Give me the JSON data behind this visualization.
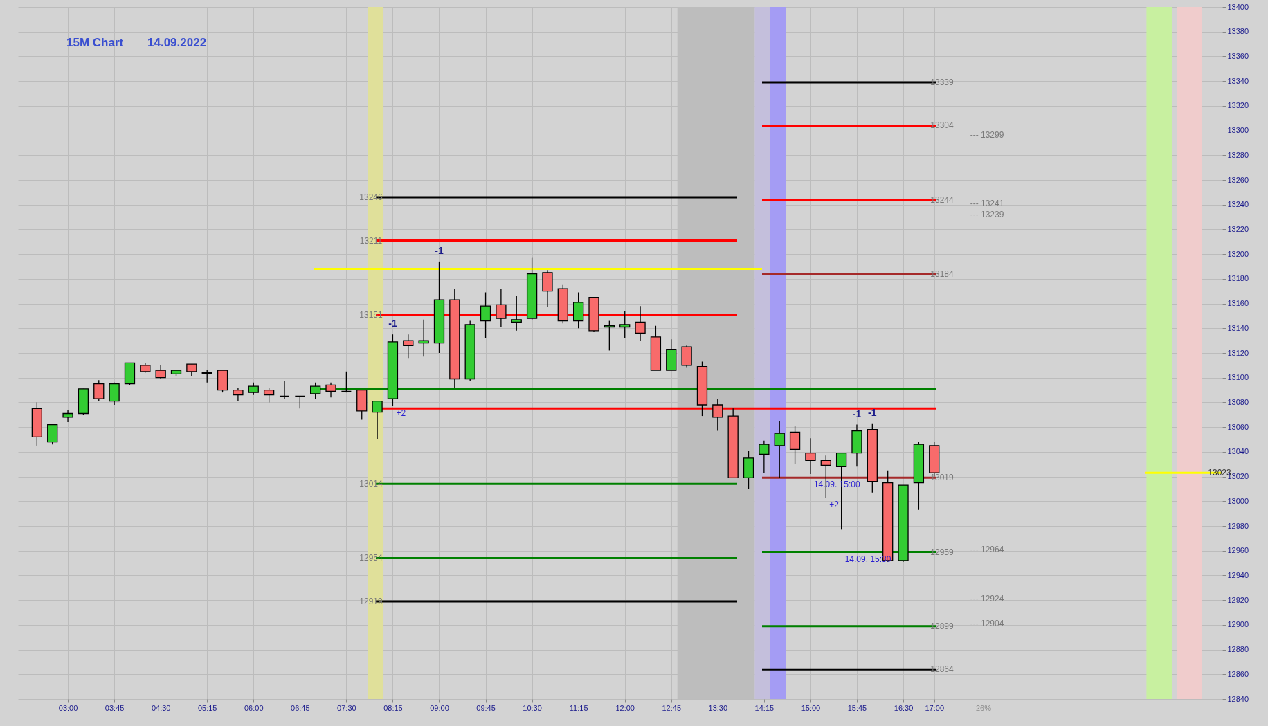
{
  "chart_data": {
    "type": "candlestick",
    "title": "15M Chart",
    "subtitle": "14.09.2022",
    "x": [
      2.5,
      2.75,
      3,
      3.25,
      3.5,
      3.75,
      4,
      4.25,
      4.5,
      4.75,
      5,
      5.25,
      5.5,
      5.75,
      6,
      6.25,
      6.5,
      6.75,
      7,
      7.25,
      7.5,
      7.75,
      8,
      8.25,
      8.5,
      8.75,
      9,
      9.25,
      9.5,
      9.75,
      10,
      10.25,
      10.5,
      10.75,
      11,
      11.25,
      11.5,
      11.75,
      12,
      12.25,
      12.5,
      12.75,
      13,
      13.25,
      13.5,
      13.75,
      14,
      14.25,
      14.5,
      14.75,
      15,
      15.25,
      15.5,
      15.75,
      16,
      16.25,
      16.5,
      16.75,
      17
    ],
    "ohlc": [
      [
        13075,
        13080,
        13045,
        13052
      ],
      [
        13048,
        13062,
        13046,
        13062
      ],
      [
        13068,
        13074,
        13064,
        13071
      ],
      [
        13071,
        13091,
        13070,
        13091
      ],
      [
        13095,
        13098,
        13081,
        13083
      ],
      [
        13081,
        13096,
        13078,
        13095
      ],
      [
        13095,
        13112,
        13094,
        13112
      ],
      [
        13110,
        13112,
        13104,
        13105
      ],
      [
        13106,
        13110,
        13099,
        13100
      ],
      [
        13103,
        13106,
        13101,
        13106
      ],
      [
        13111,
        13111,
        13101,
        13105
      ],
      [
        13104,
        13106,
        13096,
        13103
      ],
      [
        13106,
        13106,
        13088,
        13090
      ],
      [
        13090,
        13092,
        13081,
        13086
      ],
      [
        13088,
        13096,
        13086,
        13093
      ],
      [
        13090,
        13092,
        13080,
        13086
      ],
      [
        13085,
        13097,
        13083,
        13085
      ],
      [
        13085,
        13085,
        13075,
        13085
      ],
      [
        13087,
        13096,
        13083,
        13093
      ],
      [
        13094,
        13096,
        13084,
        13089
      ],
      [
        13089,
        13105,
        13088,
        13089
      ],
      [
        13090,
        13090,
        13066,
        13073
      ],
      [
        13072,
        13081,
        13050,
        13081
      ],
      [
        13083,
        13135,
        13077,
        13129
      ],
      [
        13130,
        13135,
        13116,
        13126
      ],
      [
        13128,
        13147,
        13117,
        13130
      ],
      [
        13128,
        13194,
        13120,
        13163
      ],
      [
        13163,
        13172,
        13092,
        13099
      ],
      [
        13099,
        13146,
        13097,
        13143
      ],
      [
        13146,
        13169,
        13132,
        13158
      ],
      [
        13159,
        13172,
        13141,
        13148
      ],
      [
        13145,
        13166,
        13138,
        13147
      ],
      [
        13148,
        13197,
        13147,
        13184
      ],
      [
        13185,
        13187,
        13157,
        13170
      ],
      [
        13172,
        13175,
        13144,
        13146
      ],
      [
        13146,
        13169,
        13140,
        13161
      ],
      [
        13165,
        13165,
        13137,
        13138
      ],
      [
        13141,
        13146,
        13122,
        13142
      ],
      [
        13141,
        13154,
        13132,
        13143
      ],
      [
        13145,
        13158,
        13130,
        13136
      ],
      [
        13133,
        13142,
        13106,
        13106
      ],
      [
        13106,
        13131,
        13106,
        13123
      ],
      [
        13125,
        13126,
        13108,
        13110
      ],
      [
        13109,
        13113,
        13069,
        13078
      ],
      [
        13078,
        13083,
        13057,
        13068
      ],
      [
        13069,
        13075,
        13019,
        13019
      ],
      [
        13019,
        13041,
        13010,
        13035
      ],
      [
        13038,
        13049,
        13023,
        13046
      ],
      [
        13045,
        13065,
        13019,
        13055
      ],
      [
        13056,
        13061,
        13030,
        13042
      ],
      [
        13039,
        13051,
        13022,
        13033
      ],
      [
        13033,
        13037,
        13003,
        13029
      ],
      [
        13028,
        13039,
        12977,
        13039
      ],
      [
        13039,
        13062,
        13028,
        13057
      ],
      [
        13058,
        13063,
        13007,
        13016
      ],
      [
        13015,
        13025,
        12951,
        12952
      ],
      [
        12952,
        13013,
        12951,
        13013
      ],
      [
        13015,
        13048,
        12993,
        13046
      ],
      [
        13045,
        13048,
        13020,
        13023
      ]
    ],
    "colors": [
      "#f86b6b",
      "#33cc33",
      "#33cc33",
      "#33cc33",
      "#f86b6b",
      "#33cc33",
      "#33cc33",
      "#f86b6b",
      "#f86b6b",
      "#33cc33",
      "#f86b6b",
      "#000000",
      "#f86b6b",
      "#f86b6b",
      "#33cc33",
      "#f86b6b",
      "#000000",
      "#000000",
      "#33cc33",
      "#f86b6b",
      "#000000",
      "#f86b6b",
      "#33cc33",
      "#33cc33",
      "#f86b6b",
      "#33cc33",
      "#33cc33",
      "#f86b6b",
      "#33cc33",
      "#33cc33",
      "#f86b6b",
      "#33cc33",
      "#33cc33",
      "#f86b6b",
      "#f86b6b",
      "#33cc33",
      "#f86b6b",
      "#33cc33",
      "#33cc33",
      "#f86b6b",
      "#f86b6b",
      "#33cc33",
      "#f86b6b",
      "#f86b6b",
      "#f86b6b",
      "#f86b6b",
      "#33cc33",
      "#33cc33",
      "#33cc33",
      "#f86b6b",
      "#f86b6b",
      "#f86b6b",
      "#33cc33",
      "#33cc33",
      "#f86b6b",
      "#f86b6b",
      "#33cc33",
      "#33cc33",
      "#f86b6b"
    ],
    "xlim": [
      2.25,
      21.6
    ],
    "ylim": [
      12840,
      13400
    ],
    "xticks": [
      {
        "value": 3,
        "label": "03:00"
      },
      {
        "value": 3.75,
        "label": "03:45"
      },
      {
        "value": 4.5,
        "label": "04:30"
      },
      {
        "value": 5.25,
        "label": "05:15"
      },
      {
        "value": 6,
        "label": "06:00"
      },
      {
        "value": 6.75,
        "label": "06:45"
      },
      {
        "value": 7.5,
        "label": "07:30"
      },
      {
        "value": 8.25,
        "label": "08:15"
      },
      {
        "value": 9,
        "label": "09:00"
      },
      {
        "value": 9.75,
        "label": "09:45"
      },
      {
        "value": 10.5,
        "label": "10:30"
      },
      {
        "value": 11.25,
        "label": "11:15"
      },
      {
        "value": 12,
        "label": "12:00"
      },
      {
        "value": 12.75,
        "label": "12:45"
      },
      {
        "value": 13.5,
        "label": "13:30"
      },
      {
        "value": 14.25,
        "label": "14:15"
      },
      {
        "value": 15,
        "label": "15:00"
      },
      {
        "value": 15.75,
        "label": "15:45"
      },
      {
        "value": 16.5,
        "label": "16:30"
      },
      {
        "value": 17,
        "label": "17:00"
      }
    ],
    "yticks": [
      12840,
      12860,
      12880,
      12900,
      12920,
      12940,
      12960,
      12980,
      13000,
      13020,
      13040,
      13060,
      13080,
      13100,
      13120,
      13140,
      13160,
      13180,
      13200,
      13220,
      13240,
      13260,
      13280,
      13300,
      13320,
      13340,
      13360,
      13380,
      13400
    ],
    "grid": true,
    "bands": [
      {
        "axis": "x",
        "from": 7.85,
        "to": 8.1,
        "color": "#e0e09a"
      },
      {
        "axis": "x",
        "from": 12.85,
        "to": 14.1,
        "color": "#bdbdbd"
      },
      {
        "axis": "x",
        "from": 14.1,
        "to": 14.35,
        "color": "#c4bfdc"
      },
      {
        "axis": "x",
        "from": 14.35,
        "to": 14.6,
        "color": "#a49cf4"
      },
      {
        "axis": "x",
        "from": 20.43,
        "to": 20.85,
        "color": "#c8f0a0"
      },
      {
        "axis": "x",
        "from": 20.92,
        "to": 21.33,
        "color": "#f0cccc"
      }
    ],
    "ref_lines": [
      {
        "axis": "y",
        "value": 13246,
        "label": "13246",
        "color": "#000000"
      },
      {
        "axis": "y",
        "value": 13211,
        "label": "13211",
        "color": "#ff0000"
      },
      {
        "axis": "y",
        "value": 13151,
        "label": "13151",
        "color": "#ff0000"
      },
      {
        "axis": "y",
        "value": 13014,
        "label": "13014",
        "color": "#008000"
      },
      {
        "axis": "y",
        "value": 12954,
        "label": "12954",
        "color": "#008000"
      },
      {
        "axis": "y",
        "value": 12919,
        "label": "12919",
        "color": "#000000"
      },
      {
        "axis": "y",
        "value": 13339,
        "label": "13339",
        "color": "#000000"
      },
      {
        "axis": "y",
        "value": 13304,
        "label": "13304",
        "color": "#ff0000"
      },
      {
        "axis": "y",
        "value": 13244,
        "label": "13244",
        "color": "#ff0000"
      },
      {
        "axis": "y",
        "value": 13184,
        "label": "13184",
        "color": "#a52a2a"
      },
      {
        "axis": "y",
        "value": 13019,
        "label": "13019",
        "color": "#a52a2a"
      },
      {
        "axis": "y",
        "value": 12959,
        "label": "12959",
        "color": "#008000"
      },
      {
        "axis": "y",
        "value": 12899,
        "label": "12899",
        "color": "#008000"
      },
      {
        "axis": "y",
        "value": 12864,
        "label": "12864",
        "color": "#000000"
      },
      {
        "axis": "y",
        "value": 13188,
        "label": null,
        "color": "#ffff00"
      },
      {
        "axis": "y",
        "value": 13091,
        "label": null,
        "color": "#008000"
      },
      {
        "axis": "y",
        "value": 13075,
        "label": null,
        "color": "#ff0000"
      },
      {
        "axis": "y",
        "value": 13023,
        "label": "13023",
        "color": "#ffff00"
      }
    ],
    "annotations": [
      {
        "text": "-1",
        "x": 8.25,
        "y": 13135
      },
      {
        "text": "+2",
        "x": 8.25,
        "y": 13077
      },
      {
        "text": "-1",
        "x": 9,
        "y": 13194
      },
      {
        "text": "-1",
        "x": 15.75,
        "y": 13062
      },
      {
        "text": "-1",
        "x": 16,
        "y": 13063
      },
      {
        "text": "+2",
        "x": 15.25,
        "y": 13003
      },
      {
        "text": "14.09. 15:00",
        "x": 15,
        "y": 13019
      },
      {
        "text": "14.09. 15:30",
        "x": 15.5,
        "y": 12959
      },
      "--- 13299",
      "--- 13241",
      "--- 13239",
      "--- 12964",
      "--- 12924",
      "--- 12904",
      "26%"
    ]
  }
}
